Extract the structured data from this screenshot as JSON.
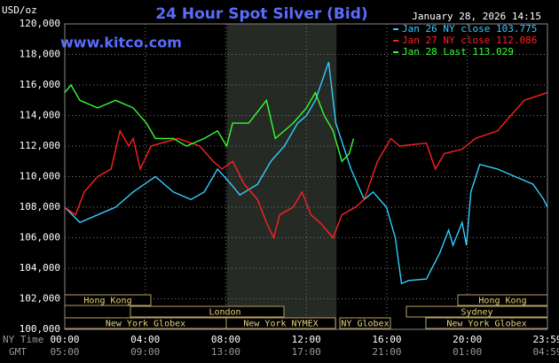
{
  "chart_data": {
    "type": "line",
    "title": "24 Hour Spot Silver (Bid)",
    "unit_label": "USD/oz",
    "site": "www.kitco.com",
    "timestamp": "January 28, 2026 14:15",
    "xlim": [
      0,
      23.983
    ],
    "ylim": [
      100000,
      120000
    ],
    "yticks": [
      {
        "value": 100000,
        "label": "100,000"
      },
      {
        "value": 102000,
        "label": "102,000"
      },
      {
        "value": 104000,
        "label": "104,000"
      },
      {
        "value": 106000,
        "label": "106,000"
      },
      {
        "value": 108000,
        "label": "108,000"
      },
      {
        "value": 110000,
        "label": "110,000"
      },
      {
        "value": 112000,
        "label": "112,000"
      },
      {
        "value": 114000,
        "label": "114,000"
      },
      {
        "value": 116000,
        "label": "116,000"
      },
      {
        "value": 118000,
        "label": "118,000"
      },
      {
        "value": 120000,
        "label": "120,000"
      }
    ],
    "xticks": [
      {
        "value": 0,
        "label": "00:00"
      },
      {
        "value": 4,
        "label": "04:00"
      },
      {
        "value": 8,
        "label": "08:00"
      },
      {
        "value": 12,
        "label": "12:00"
      },
      {
        "value": 16,
        "label": "16:00"
      },
      {
        "value": 20,
        "label": "20:00"
      },
      {
        "value": 23.983,
        "label": "23:59"
      }
    ],
    "x_row_label": "NY Time",
    "gmt_row_label": "GMT",
    "gmt_labels": [
      "05:00",
      "09:00",
      "13:00",
      "17:00",
      "21:00",
      "01:00",
      "04:59"
    ],
    "sessions": [
      "Hong Kong",
      "London",
      "New York Globex",
      "New York NYMEX",
      "NY Globex",
      "Sydney",
      "Hong Kong",
      "New York Globex"
    ],
    "grid": true,
    "series": [
      {
        "name": "Jan 26 NY close 103.775",
        "color": "#33ccff",
        "x": [
          0,
          0.75,
          2.52,
          3.4,
          4.5,
          5.39,
          6.27,
          6.93,
          7.59,
          8.26,
          8.7,
          9.58,
          10.24,
          10.91,
          11.57,
          12.01,
          12.45,
          13.11,
          13.47,
          14.22,
          14.88,
          15.32,
          15.98,
          16.42,
          16.73,
          17.09,
          17.97,
          18.63,
          19.07,
          19.29,
          19.74,
          19.96,
          20.18,
          20.62,
          21.5,
          22.38,
          23.27,
          23.8,
          23.98
        ],
        "values": [
          108000,
          107000,
          108000,
          109000,
          110000,
          109000,
          108500,
          109000,
          110500,
          109500,
          108800,
          109500,
          111000,
          112000,
          113500,
          114000,
          115000,
          117500,
          113500,
          110500,
          108500,
          109000,
          108000,
          106000,
          103000,
          103200,
          103300,
          105000,
          106500,
          105500,
          107000,
          105500,
          109000,
          110800,
          110500,
          110000,
          109500,
          108500,
          108000
        ]
      },
      {
        "name": "Jan 27 NY close 112.086",
        "color": "#ff2020",
        "x": [
          0,
          0.53,
          0.97,
          1.63,
          2.3,
          2.74,
          3.18,
          3.4,
          3.75,
          4.28,
          5.61,
          6.71,
          7.37,
          7.81,
          8.34,
          8.92,
          9.58,
          10.02,
          10.38,
          10.68,
          11.35,
          11.79,
          12.23,
          12.67,
          13.33,
          13.77,
          14.44,
          14.88,
          15.54,
          16.2,
          16.64,
          17.97,
          18.41,
          18.85,
          19.74,
          20.4,
          21.5,
          22.16,
          22.83,
          23.98
        ],
        "values": [
          108000,
          107500,
          109000,
          110000,
          110500,
          113000,
          112000,
          112500,
          110500,
          112000,
          112500,
          112000,
          111000,
          110500,
          111000,
          109500,
          108500,
          107000,
          106000,
          107500,
          108000,
          109000,
          107500,
          107000,
          106000,
          107500,
          108000,
          108500,
          111000,
          112500,
          112000,
          112200,
          110500,
          111500,
          111800,
          112500,
          113000,
          114000,
          115000,
          115500
        ]
      },
      {
        "name": "Jan 28 Last 113.029",
        "color": "#33ff33",
        "x": [
          0,
          0.31,
          0.75,
          1.63,
          2.52,
          3.4,
          4.06,
          4.5,
          5.39,
          6.05,
          6.93,
          7.59,
          8.04,
          8.34,
          9.14,
          10.02,
          10.46,
          11.35,
          12.01,
          12.45,
          12.89,
          13.33,
          13.77,
          14.13,
          14.35
        ],
        "values": [
          115500,
          116000,
          115000,
          114500,
          115000,
          114500,
          113500,
          112500,
          112500,
          112000,
          112500,
          113000,
          112000,
          113500,
          113500,
          115000,
          112500,
          113500,
          114500,
          115500,
          114000,
          113000,
          111000,
          111500,
          112500
        ]
      }
    ]
  }
}
